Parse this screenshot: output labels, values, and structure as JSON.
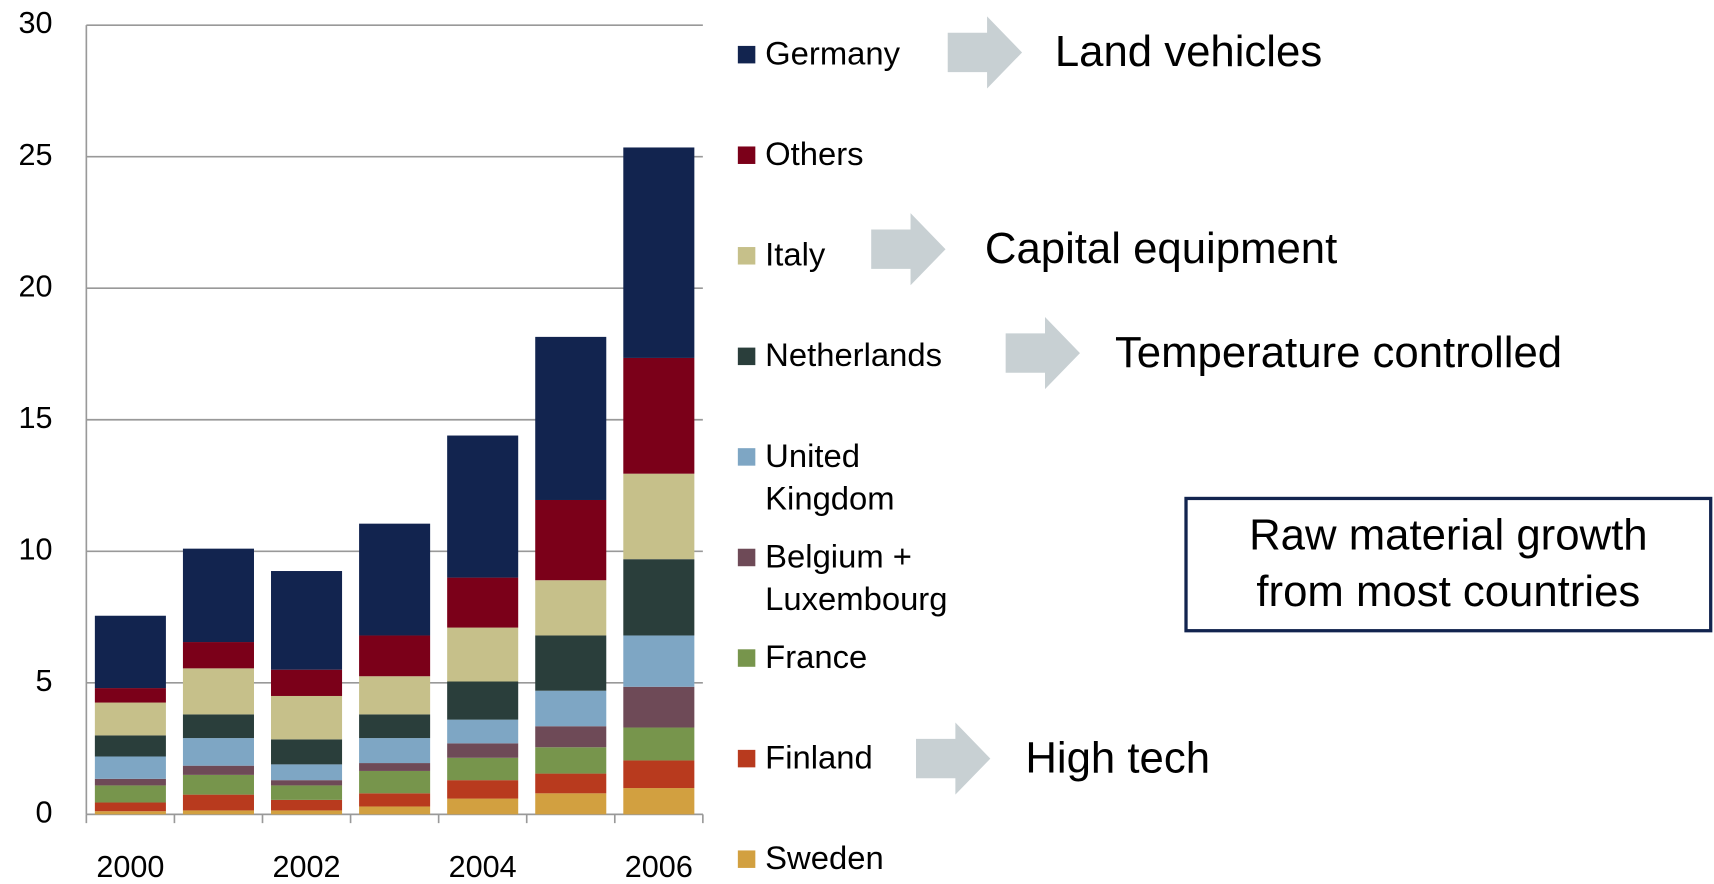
{
  "chart_data": {
    "type": "stacked_bar",
    "categories": [
      "2000",
      null,
      "2002",
      null,
      "2004",
      null,
      "2006"
    ],
    "series": [
      {
        "name": "Germany",
        "color": "#12244f",
        "values": [
          2.75,
          3.55,
          3.75,
          4.25,
          5.4,
          6.2,
          8.0
        ]
      },
      {
        "name": "Others",
        "color": "#7b0019",
        "values": [
          0.55,
          1.0,
          1.0,
          1.55,
          1.9,
          3.05,
          4.4
        ]
      },
      {
        "name": "Italy",
        "color": "#c6c08a",
        "values": [
          1.25,
          1.75,
          1.65,
          1.45,
          2.05,
          2.1,
          3.25
        ]
      },
      {
        "name": "Netherlands",
        "color": "#2a3e3b",
        "values": [
          0.8,
          0.9,
          0.95,
          0.9,
          1.45,
          2.1,
          2.9
        ]
      },
      {
        "name": "United Kingdom",
        "color": "#7ea6c4",
        "values": [
          0.85,
          1.05,
          0.6,
          0.95,
          0.9,
          1.35,
          1.95
        ]
      },
      {
        "name": "Belgium + Luxembourg",
        "color": "#6e4a57",
        "values": [
          0.25,
          0.35,
          0.2,
          0.3,
          0.55,
          0.8,
          1.55
        ]
      },
      {
        "name": "France",
        "color": "#77954c",
        "values": [
          0.65,
          0.75,
          0.55,
          0.85,
          0.85,
          1.0,
          1.25
        ]
      },
      {
        "name": "Finland",
        "color": "#b83a1e",
        "values": [
          0.33,
          0.6,
          0.4,
          0.5,
          0.7,
          0.75,
          1.05
        ]
      },
      {
        "name": "Sweden",
        "color": "#d2a040",
        "values": [
          0.12,
          0.15,
          0.15,
          0.3,
          0.6,
          0.8,
          1.0
        ]
      }
    ],
    "ylim": [
      0,
      30
    ],
    "yticks": [
      0,
      5,
      10,
      15,
      20,
      25,
      30
    ],
    "grid": true,
    "annotations": [
      {
        "text": "Land vehicles"
      },
      {
        "text": "Capital equipment"
      },
      {
        "text": "Temperature controlled"
      },
      {
        "text": "High tech"
      }
    ],
    "callout": [
      "Raw material growth",
      "from most countries"
    ]
  }
}
